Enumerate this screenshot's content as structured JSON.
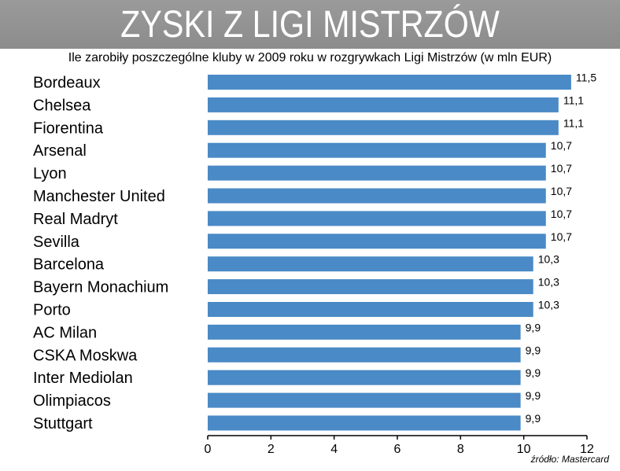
{
  "header": {
    "title": "ZYSKI Z LIGI MISTRZÓW",
    "subtitle": "Ile zarobiły poszczególne kluby w 2009 roku w rozgrywkach Ligi Mistrzów (w mln EUR)",
    "source": "źródło: Mastercard"
  },
  "colors": {
    "bar": "#4a8ac6",
    "title_band": "#8f8f8f"
  },
  "chart_data": {
    "type": "bar",
    "orientation": "horizontal",
    "categories": [
      "Bordeaux",
      "Chelsea",
      "Fiorentina",
      "Arsenal",
      "Lyon",
      "Manchester United",
      "Real Madryt",
      "Sevilla",
      "Barcelona",
      "Bayern Monachium",
      "Porto",
      "AC Milan",
      "CSKA Moskwa",
      "Inter Mediolan",
      "Olimpiacos",
      "Stuttgart"
    ],
    "values": [
      11.5,
      11.1,
      11.1,
      10.7,
      10.7,
      10.7,
      10.7,
      10.7,
      10.3,
      10.3,
      10.3,
      9.9,
      9.9,
      9.9,
      9.9,
      9.9
    ],
    "data_labels": [
      "11,5",
      "11,1",
      "11,1",
      "10,7",
      "10,7",
      "10,7",
      "10,7",
      "10,7",
      "10,3",
      "10,3",
      "10,3",
      "9,9",
      "9,9",
      "9,9",
      "9,9",
      "9,9"
    ],
    "xlim": [
      0,
      12
    ],
    "xticks": [
      0,
      2,
      4,
      6,
      8,
      10,
      12
    ],
    "xtick_labels": [
      "0",
      "2",
      "4",
      "6",
      "8",
      "10",
      "12"
    ],
    "grid": false
  }
}
